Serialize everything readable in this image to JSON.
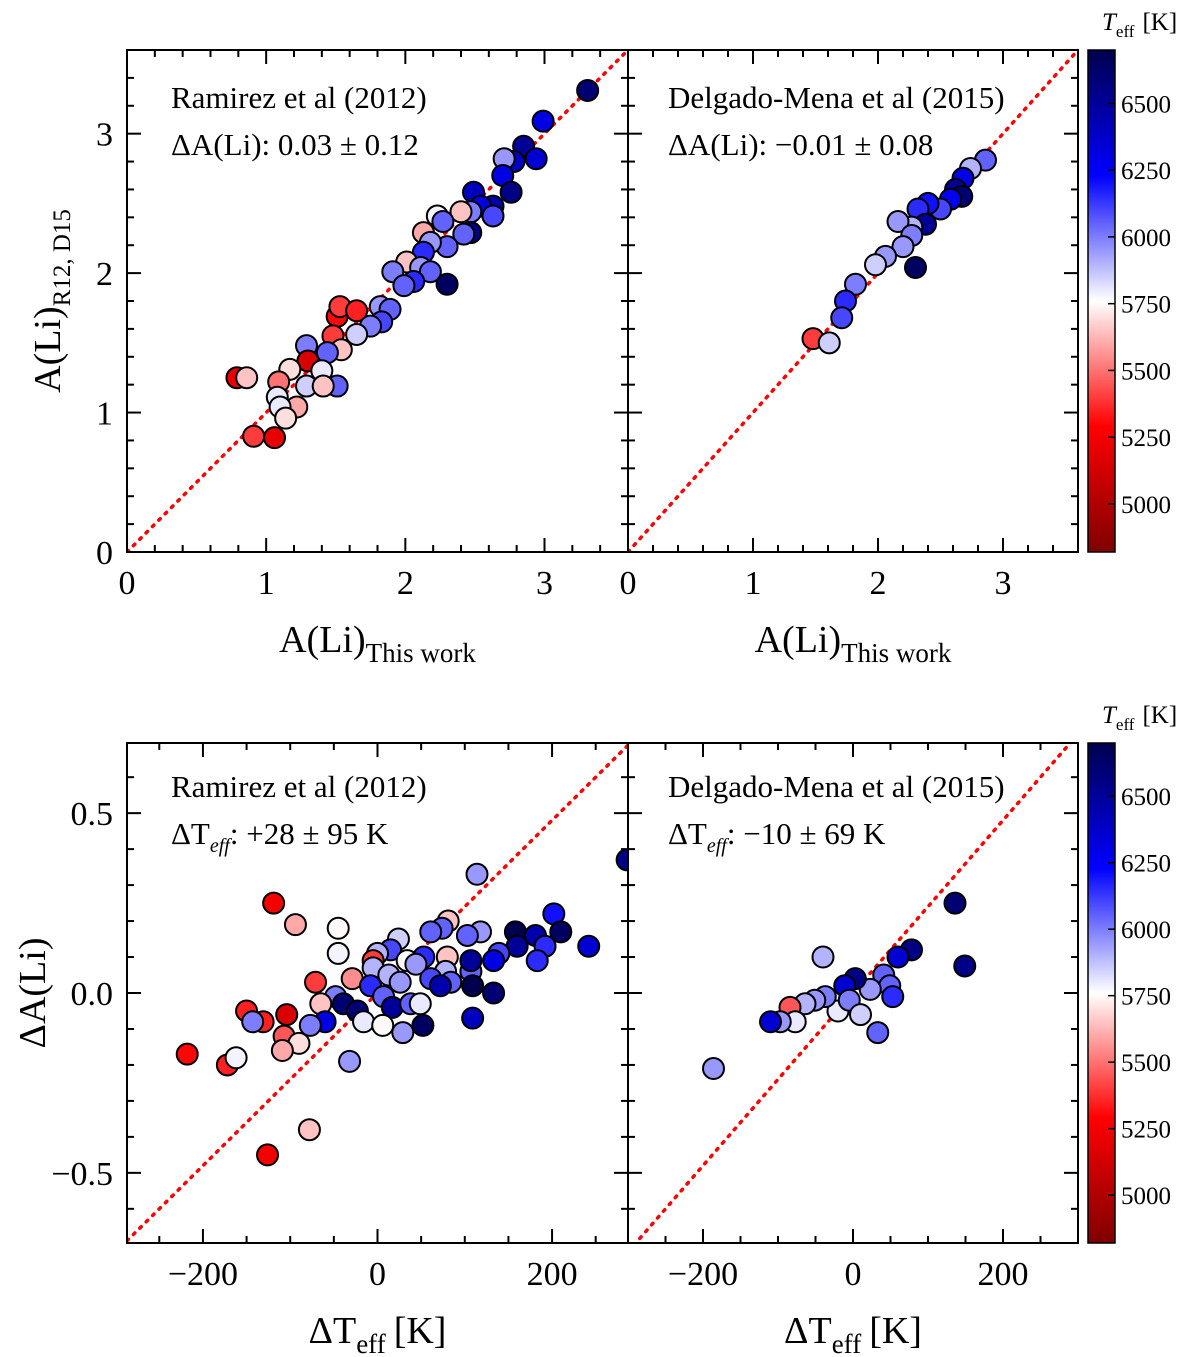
{
  "chart_data": [
    {
      "type": "scatter",
      "panel": "top-left",
      "title": "Ramirez et al (2012)",
      "stat_label": "ΔA(Li):",
      "stat_value": "0.03 ± 0.12",
      "xlabel": {
        "main": "A(Li)",
        "sub": "This work"
      },
      "ylabel": {
        "main": "A(Li)",
        "sub": "R12, D15"
      },
      "xlim": [
        0,
        3.6
      ],
      "ylim": [
        0,
        3.6
      ],
      "xticks": [
        0,
        1,
        2,
        3
      ],
      "yticks": [
        0,
        1,
        2,
        3
      ],
      "xtick_labels": [
        "0",
        "1",
        "2",
        "3"
      ],
      "ytick_labels": [
        "0",
        "1",
        "2",
        "3"
      ],
      "xminor": 0.2,
      "yminor": 0.2,
      "reference_line": {
        "slope": 1,
        "intercept": 0,
        "color": "#ff0000",
        "style": "dotted"
      },
      "points": [
        [
          3.31,
          3.31,
          6600
        ],
        [
          2.99,
          3.09,
          6300
        ],
        [
          2.85,
          2.91,
          6500
        ],
        [
          2.94,
          2.82,
          6350
        ],
        [
          2.78,
          2.8,
          6400
        ],
        [
          2.71,
          2.82,
          5950
        ],
        [
          2.7,
          2.7,
          6300
        ],
        [
          2.76,
          2.58,
          6550
        ],
        [
          2.49,
          2.58,
          6400
        ],
        [
          2.63,
          2.48,
          6450
        ],
        [
          2.54,
          2.48,
          6300
        ],
        [
          2.63,
          2.41,
          6100
        ],
        [
          2.47,
          2.44,
          6000
        ],
        [
          2.23,
          2.41,
          5780
        ],
        [
          2.4,
          2.44,
          5650
        ],
        [
          2.27,
          2.37,
          6050
        ],
        [
          2.47,
          2.29,
          6550
        ],
        [
          2.42,
          2.28,
          6050
        ],
        [
          2.13,
          2.29,
          5600
        ],
        [
          2.3,
          2.19,
          6050
        ],
        [
          2.18,
          2.22,
          5950
        ],
        [
          2.13,
          2.15,
          6150
        ],
        [
          2.01,
          2.08,
          5650
        ],
        [
          2.11,
          2.04,
          5950
        ],
        [
          1.91,
          2.01,
          6000
        ],
        [
          2.18,
          2.01,
          6050
        ],
        [
          2.06,
          1.94,
          6150
        ],
        [
          1.99,
          1.91,
          6050
        ],
        [
          2.3,
          1.92,
          6650
        ],
        [
          1.51,
          1.69,
          5300
        ],
        [
          1.53,
          1.76,
          5400
        ],
        [
          1.65,
          1.73,
          5350
        ],
        [
          1.82,
          1.76,
          5950
        ],
        [
          1.89,
          1.74,
          6050
        ],
        [
          1.83,
          1.65,
          6100
        ],
        [
          1.75,
          1.62,
          6000
        ],
        [
          1.65,
          1.56,
          5850
        ],
        [
          1.48,
          1.55,
          5400
        ],
        [
          1.54,
          1.45,
          5650
        ],
        [
          1.29,
          1.48,
          6000
        ],
        [
          1.44,
          1.43,
          6050
        ],
        [
          1.3,
          1.37,
          5150
        ],
        [
          1.4,
          1.3,
          5800
        ],
        [
          1.17,
          1.31,
          5700
        ],
        [
          1.51,
          1.19,
          6050
        ],
        [
          1.29,
          1.19,
          5850
        ],
        [
          1.41,
          1.19,
          5650
        ],
        [
          0.79,
          1.25,
          5200
        ],
        [
          0.86,
          1.25,
          5650
        ],
        [
          1.09,
          1.22,
          5500
        ],
        [
          1.08,
          1.11,
          5800
        ],
        [
          1.22,
          1.04,
          5600
        ],
        [
          1.1,
          1.04,
          5800
        ],
        [
          1.14,
          0.96,
          5700
        ],
        [
          0.91,
          0.83,
          5400
        ],
        [
          1.06,
          0.82,
          5200
        ]
      ]
    },
    {
      "type": "scatter",
      "panel": "top-right",
      "title": "Delgado-Mena et al (2015)",
      "stat_label": "ΔA(Li):",
      "stat_value": "−0.01 ± 0.08",
      "xlabel": {
        "main": "A(Li)",
        "sub": "This work"
      },
      "xlim": [
        0,
        3.6
      ],
      "ylim": [
        0,
        3.6
      ],
      "xticks": [
        0,
        1,
        2,
        3
      ],
      "yticks": [
        0,
        1,
        2,
        3
      ],
      "xtick_labels": [
        "0",
        "1",
        "2",
        "3"
      ],
      "ytick_labels": [],
      "xminor": 0.2,
      "yminor": 0.2,
      "reference_line": {
        "slope": 1,
        "intercept": 0,
        "color": "#ff0000",
        "style": "dotted"
      },
      "points": [
        [
          2.86,
          2.81,
          6050
        ],
        [
          2.74,
          2.75,
          5900
        ],
        [
          2.68,
          2.68,
          6300
        ],
        [
          2.62,
          2.6,
          6500
        ],
        [
          2.67,
          2.55,
          6600
        ],
        [
          2.58,
          2.53,
          6250
        ],
        [
          2.5,
          2.46,
          6100
        ],
        [
          2.4,
          2.5,
          6200
        ],
        [
          2.32,
          2.46,
          6150
        ],
        [
          2.38,
          2.35,
          6500
        ],
        [
          2.27,
          2.33,
          5900
        ],
        [
          2.16,
          2.37,
          5950
        ],
        [
          2.27,
          2.27,
          6000
        ],
        [
          2.2,
          2.19,
          5950
        ],
        [
          2.06,
          2.12,
          5950
        ],
        [
          1.98,
          2.06,
          5850
        ],
        [
          2.3,
          2.04,
          6650
        ],
        [
          1.82,
          1.92,
          6000
        ],
        [
          1.74,
          1.8,
          6150
        ],
        [
          1.71,
          1.68,
          6100
        ],
        [
          1.48,
          1.53,
          5400
        ],
        [
          1.61,
          1.5,
          5850
        ]
      ]
    },
    {
      "type": "scatter",
      "panel": "bottom-left",
      "title": "Ramirez et al (2012)",
      "stat_label": "ΔTeff:",
      "stat_value": "+28 ± 95 K",
      "xlabel": {
        "main": "ΔT",
        "sub": "eff",
        "unit": "[K]"
      },
      "ylabel": {
        "main": "ΔA(Li)",
        "sub": ""
      },
      "xlim": [
        -287,
        287
      ],
      "ylim": [
        -0.695,
        0.695
      ],
      "xticks": [
        -200,
        0,
        200
      ],
      "yticks": [
        -0.5,
        0.0,
        0.5
      ],
      "xtick_labels": [
        "−200",
        "0",
        "200"
      ],
      "ytick_labels": [
        "−0.5",
        "0.0",
        "0.5"
      ],
      "xminor": 50,
      "yminor": 0.1,
      "reference_line": {
        "slope": 0.0024,
        "intercept": 0,
        "color": "#ff0000",
        "style": "dotted"
      },
      "points": [
        [
          114,
          0.33,
          5950
        ],
        [
          286,
          0.37,
          6550
        ],
        [
          -119,
          0.25,
          5250
        ],
        [
          -94,
          0.19,
          5600
        ],
        [
          -45,
          0.18,
          5750
        ],
        [
          -45,
          0.11,
          5780
        ],
        [
          202,
          0.22,
          6200
        ],
        [
          210,
          0.17,
          6650
        ],
        [
          242,
          0.13,
          6350
        ],
        [
          158,
          0.17,
          6700
        ],
        [
          181,
          0.16,
          6450
        ],
        [
          160,
          0.13,
          6500
        ],
        [
          192,
          0.13,
          6150
        ],
        [
          183,
          0.09,
          6150
        ],
        [
          139,
          0.11,
          6100
        ],
        [
          133,
          0.09,
          6300
        ],
        [
          118,
          0.17,
          5950
        ],
        [
          103,
          0.16,
          6050
        ],
        [
          81,
          0.2,
          5650
        ],
        [
          74,
          0.18,
          6050
        ],
        [
          61,
          0.17,
          6050
        ],
        [
          24,
          0.15,
          5850
        ],
        [
          15,
          0.12,
          6100
        ],
        [
          0,
          0.11,
          5900
        ],
        [
          -5,
          0.09,
          5400
        ],
        [
          34,
          0.09,
          5750
        ],
        [
          53,
          0.1,
          6150
        ],
        [
          80,
          0.1,
          5650
        ],
        [
          78,
          0.06,
          5900
        ],
        [
          107,
          0.06,
          6050
        ],
        [
          107,
          0.09,
          6500
        ],
        [
          44,
          0.08,
          5950
        ],
        [
          -5,
          0.07,
          5900
        ],
        [
          13,
          0.05,
          5900
        ],
        [
          26,
          0.03,
          5950
        ],
        [
          61,
          0.04,
          6100
        ],
        [
          84,
          0.03,
          6050
        ],
        [
          72,
          0.02,
          6450
        ],
        [
          109,
          0.02,
          6700
        ],
        [
          133,
          0.0,
          6600
        ],
        [
          -29,
          0.04,
          5550
        ],
        [
          -71,
          0.03,
          5400
        ],
        [
          -8,
          0.02,
          6150
        ],
        [
          -48,
          -0.01,
          6000
        ],
        [
          -39,
          -0.03,
          6600
        ],
        [
          -23,
          -0.05,
          6600
        ],
        [
          7,
          -0.01,
          6050
        ],
        [
          17,
          -0.04,
          6500
        ],
        [
          38,
          -0.03,
          6050
        ],
        [
          49,
          -0.03,
          5800
        ],
        [
          -16,
          -0.08,
          5800
        ],
        [
          6,
          -0.09,
          5750
        ],
        [
          29,
          -0.11,
          5950
        ],
        [
          52,
          -0.09,
          6650
        ],
        [
          109,
          -0.07,
          6400
        ],
        [
          -65,
          -0.03,
          5650
        ],
        [
          -60,
          -0.08,
          6300
        ],
        [
          -77,
          -0.09,
          6000
        ],
        [
          -104,
          -0.06,
          5150
        ],
        [
          -150,
          -0.05,
          5350
        ],
        [
          -131,
          -0.08,
          5350
        ],
        [
          -143,
          -0.08,
          6000
        ],
        [
          -107,
          -0.12,
          5450
        ],
        [
          -90,
          -0.14,
          5700
        ],
        [
          -109,
          -0.16,
          5600
        ],
        [
          -218,
          -0.17,
          5300
        ],
        [
          -172,
          -0.2,
          5350
        ],
        [
          -162,
          -0.18,
          5780
        ],
        [
          -32,
          -0.19,
          5950
        ],
        [
          -78,
          -0.38,
          5650
        ],
        [
          -126,
          -0.45,
          5250
        ]
      ]
    },
    {
      "type": "scatter",
      "panel": "bottom-right",
      "title": "Delgado-Mena et al (2015)",
      "stat_label": "ΔTeff:",
      "stat_value": "−10 ± 69 K",
      "xlabel": {
        "main": "ΔT",
        "sub": "eff",
        "unit": "[K]"
      },
      "xlim": [
        -300,
        300
      ],
      "ylim": [
        -0.695,
        0.695
      ],
      "xticks": [
        -200,
        0,
        200
      ],
      "yticks": [
        -0.5,
        0.0,
        0.5
      ],
      "xtick_labels": [
        "−200",
        "0",
        "200"
      ],
      "ytick_labels": [],
      "xminor": 50,
      "yminor": 0.1,
      "reference_line": {
        "slope": 0.0024,
        "intercept": 0,
        "color": "#ff0000",
        "style": "dotted"
      },
      "points": [
        [
          136,
          0.25,
          6600
        ],
        [
          149,
          0.075,
          6550
        ],
        [
          78,
          0.12,
          6550
        ],
        [
          60,
          0.1,
          6350
        ],
        [
          41,
          0.05,
          6050
        ],
        [
          49,
          0.02,
          6050
        ],
        [
          53,
          -0.01,
          6150
        ],
        [
          33,
          -0.11,
          6050
        ],
        [
          23,
          0.01,
          5950
        ],
        [
          3,
          0.04,
          6550
        ],
        [
          -11,
          0.02,
          6350
        ],
        [
          -20,
          -0.05,
          5800
        ],
        [
          -40,
          0.1,
          5900
        ],
        [
          -37,
          -0.01,
          6000
        ],
        [
          -51,
          -0.02,
          5950
        ],
        [
          -64,
          -0.03,
          5900
        ],
        [
          -84,
          -0.04,
          5450
        ],
        [
          -77,
          -0.08,
          5800
        ],
        [
          -97,
          -0.08,
          5950
        ],
        [
          -110,
          -0.08,
          6350
        ],
        [
          -186,
          -0.21,
          5950
        ],
        [
          -5,
          -0.02,
          6000
        ],
        [
          10,
          -0.06,
          5850
        ]
      ]
    }
  ],
  "colorbar": {
    "label_main": "T",
    "label_sub": "eff",
    "label_unit": "[K]",
    "range": [
      4820,
      6700
    ],
    "ticks": [
      5000,
      5250,
      5500,
      5750,
      6000,
      6250,
      6500
    ],
    "tick_labels": [
      "5000",
      "5250",
      "5500",
      "5750",
      "6000",
      "6250",
      "6500"
    ],
    "colormap": "seismic_r",
    "marker_edge": "#000000"
  }
}
